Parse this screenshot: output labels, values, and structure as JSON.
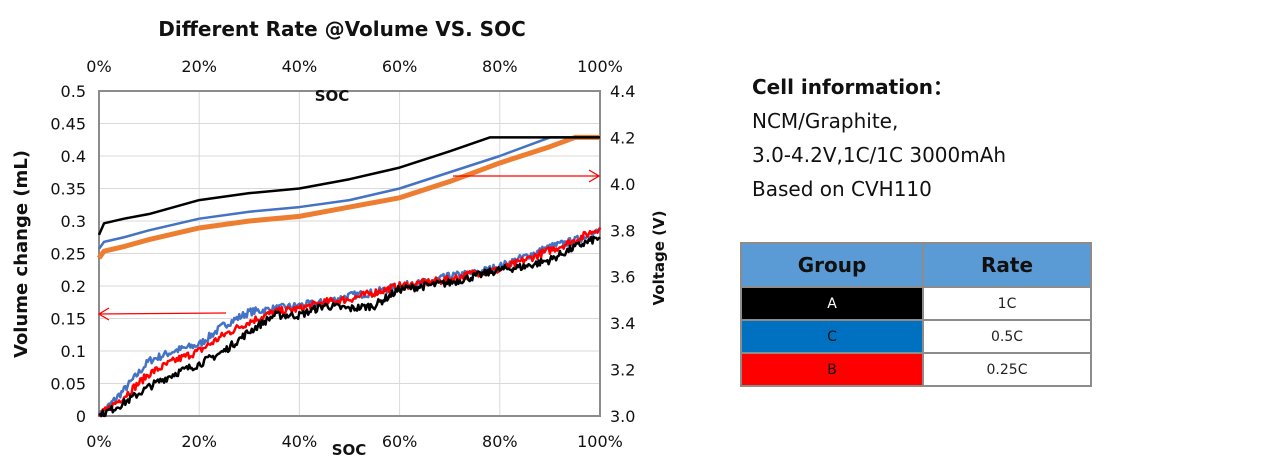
{
  "chart_data": {
    "type": "line",
    "title": "Different Rate @Volume VS. SOC",
    "xlabel": "SOC",
    "x2label": "SOC",
    "ylabel": "Volume change (mL)",
    "y2label": "Voltage (V)",
    "xlim": [
      0,
      100
    ],
    "ylim": [
      0,
      0.5
    ],
    "y2lim": [
      3.0,
      4.4
    ],
    "grid": true,
    "x_ticks": [
      "0%",
      "20%",
      "40%",
      "60%",
      "80%",
      "100%"
    ],
    "y_ticks": [
      "0",
      "0.05",
      "0.1",
      "0.15",
      "0.2",
      "0.25",
      "0.3",
      "0.35",
      "0.4",
      "0.45",
      "0.5"
    ],
    "y2_ticks": [
      "3.0",
      "3.2",
      "3.4",
      "3.6",
      "3.8",
      "4.0",
      "4.2",
      "4.4"
    ],
    "x": [
      0,
      5,
      10,
      15,
      20,
      25,
      30,
      35,
      40,
      45,
      50,
      55,
      60,
      65,
      70,
      75,
      80,
      85,
      90,
      95,
      100
    ],
    "series": [
      {
        "axis": "left",
        "color": "#4472C4",
        "values": [
          0,
          0.04,
          0.085,
          0.1,
          0.11,
          0.14,
          0.16,
          0.165,
          0.17,
          0.175,
          0.185,
          0.19,
          0.2,
          0.205,
          0.215,
          0.22,
          0.23,
          0.245,
          0.26,
          0.27,
          0.285
        ]
      },
      {
        "axis": "left",
        "color": "#FF0000",
        "values": [
          0,
          0.03,
          0.065,
          0.085,
          0.1,
          0.125,
          0.145,
          0.16,
          0.165,
          0.175,
          0.18,
          0.19,
          0.2,
          0.205,
          0.21,
          0.22,
          0.225,
          0.24,
          0.255,
          0.27,
          0.29
        ]
      },
      {
        "axis": "left",
        "color": "#000000",
        "values": [
          0,
          0.02,
          0.045,
          0.065,
          0.08,
          0.1,
          0.13,
          0.155,
          0.155,
          0.17,
          0.165,
          0.17,
          0.195,
          0.2,
          0.205,
          0.215,
          0.225,
          0.23,
          0.24,
          0.26,
          0.275
        ]
      },
      {
        "axis": "right",
        "color": "#ED7D31",
        "x": [
          0,
          1,
          5,
          10,
          20,
          30,
          40,
          50,
          60,
          70,
          80,
          90,
          95,
          100
        ],
        "values": [
          3.68,
          3.71,
          3.73,
          3.76,
          3.81,
          3.84,
          3.86,
          3.9,
          3.94,
          4.01,
          4.09,
          4.16,
          4.2,
          4.2
        ]
      },
      {
        "axis": "right",
        "color": "#4472C4",
        "x": [
          0,
          1,
          5,
          10,
          20,
          30,
          40,
          50,
          60,
          70,
          80,
          90,
          100
        ],
        "values": [
          3.72,
          3.75,
          3.77,
          3.8,
          3.85,
          3.88,
          3.9,
          3.93,
          3.98,
          4.05,
          4.12,
          4.2,
          4.2
        ]
      },
      {
        "axis": "right",
        "color": "#000000",
        "x": [
          0,
          1,
          5,
          10,
          20,
          30,
          40,
          50,
          60,
          70,
          78,
          100
        ],
        "values": [
          3.78,
          3.83,
          3.85,
          3.87,
          3.93,
          3.96,
          3.98,
          4.02,
          4.07,
          4.14,
          4.2,
          4.2
        ]
      }
    ],
    "annotations": [
      {
        "type": "arrow",
        "direction": "left",
        "color": "#FF0000"
      },
      {
        "type": "arrow",
        "direction": "right",
        "color": "#FF0000"
      }
    ]
  },
  "info": {
    "heading": "Cell information：",
    "lines": [
      "NCM/Graphite,",
      "3.0-4.2V,1C/1C 3000mAh",
      "Based on CVH110"
    ]
  },
  "table": {
    "headers": [
      "Group",
      "Rate"
    ],
    "rows": [
      {
        "group": "A",
        "rate": "1C",
        "bg": "#000000",
        "fg": "#ffffff"
      },
      {
        "group": "C",
        "rate": "0.5C",
        "bg": "#0070C0",
        "fg": "#111111"
      },
      {
        "group": "B",
        "rate": "0.25C",
        "bg": "#FF0000",
        "fg": "#111111"
      }
    ]
  }
}
